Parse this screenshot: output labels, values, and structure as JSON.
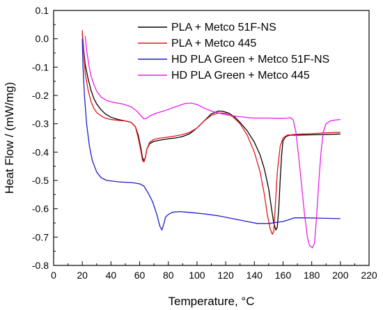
{
  "chart_data": {
    "type": "line",
    "title": "",
    "xlabel": "Temperature, °C",
    "ylabel": "Heat Flow / (mW/mg)",
    "xlim": [
      0,
      220
    ],
    "ylim": [
      -0.8,
      0.1
    ],
    "xticks": [
      0,
      20,
      40,
      60,
      80,
      100,
      120,
      140,
      160,
      180,
      200,
      220
    ],
    "yticks": [
      -0.8,
      -0.7,
      -0.6,
      -0.5,
      -0.4,
      -0.3,
      -0.2,
      -0.1,
      0.0,
      0.1
    ],
    "grid": false,
    "legend_position": "top-right",
    "series": [
      {
        "name": "PLA + Metco 51F-NS",
        "color": "#000000",
        "points": [
          [
            20,
            0.02
          ],
          [
            21,
            -0.04
          ],
          [
            22,
            -0.09
          ],
          [
            24,
            -0.14
          ],
          [
            26,
            -0.18
          ],
          [
            28,
            -0.21
          ],
          [
            30,
            -0.23
          ],
          [
            33,
            -0.25
          ],
          [
            36,
            -0.265
          ],
          [
            40,
            -0.277
          ],
          [
            45,
            -0.285
          ],
          [
            50,
            -0.29
          ],
          [
            54,
            -0.295
          ],
          [
            57,
            -0.31
          ],
          [
            59,
            -0.34
          ],
          [
            61,
            -0.39
          ],
          [
            62,
            -0.42
          ],
          [
            63,
            -0.43
          ],
          [
            64,
            -0.42
          ],
          [
            65,
            -0.39
          ],
          [
            67,
            -0.37
          ],
          [
            70,
            -0.362
          ],
          [
            75,
            -0.357
          ],
          [
            80,
            -0.353
          ],
          [
            85,
            -0.35
          ],
          [
            90,
            -0.345
          ],
          [
            95,
            -0.335
          ],
          [
            100,
            -0.315
          ],
          [
            105,
            -0.29
          ],
          [
            110,
            -0.265
          ],
          [
            115,
            -0.255
          ],
          [
            118,
            -0.256
          ],
          [
            122,
            -0.262
          ],
          [
            126,
            -0.275
          ],
          [
            130,
            -0.295
          ],
          [
            135,
            -0.325
          ],
          [
            140,
            -0.365
          ],
          [
            144,
            -0.41
          ],
          [
            147,
            -0.46
          ],
          [
            150,
            -0.53
          ],
          [
            152,
            -0.6
          ],
          [
            153.5,
            -0.65
          ],
          [
            155,
            -0.675
          ],
          [
            156,
            -0.665
          ],
          [
            157,
            -0.6
          ],
          [
            158,
            -0.5
          ],
          [
            159,
            -0.41
          ],
          [
            160,
            -0.36
          ],
          [
            162,
            -0.345
          ],
          [
            165,
            -0.34
          ],
          [
            170,
            -0.34
          ],
          [
            180,
            -0.339
          ],
          [
            190,
            -0.338
          ],
          [
            200,
            -0.336
          ]
        ]
      },
      {
        "name": "PLA + Metco 445",
        "color": "#e0161c",
        "points": [
          [
            20,
            0.03
          ],
          [
            21,
            -0.05
          ],
          [
            22,
            -0.12
          ],
          [
            24,
            -0.18
          ],
          [
            26,
            -0.22
          ],
          [
            28,
            -0.245
          ],
          [
            30,
            -0.26
          ],
          [
            33,
            -0.272
          ],
          [
            36,
            -0.28
          ],
          [
            40,
            -0.285
          ],
          [
            45,
            -0.288
          ],
          [
            50,
            -0.29
          ],
          [
            54,
            -0.295
          ],
          [
            57,
            -0.31
          ],
          [
            59,
            -0.35
          ],
          [
            61,
            -0.4
          ],
          [
            62,
            -0.43
          ],
          [
            63,
            -0.435
          ],
          [
            64,
            -0.42
          ],
          [
            65,
            -0.39
          ],
          [
            67,
            -0.365
          ],
          [
            70,
            -0.355
          ],
          [
            75,
            -0.35
          ],
          [
            80,
            -0.347
          ],
          [
            85,
            -0.343
          ],
          [
            90,
            -0.338
          ],
          [
            95,
            -0.33
          ],
          [
            100,
            -0.315
          ],
          [
            105,
            -0.29
          ],
          [
            110,
            -0.27
          ],
          [
            115,
            -0.262
          ],
          [
            120,
            -0.263
          ],
          [
            125,
            -0.275
          ],
          [
            130,
            -0.3
          ],
          [
            135,
            -0.34
          ],
          [
            140,
            -0.4
          ],
          [
            144,
            -0.47
          ],
          [
            147,
            -0.55
          ],
          [
            149,
            -0.62
          ],
          [
            151,
            -0.67
          ],
          [
            152.5,
            -0.69
          ],
          [
            153.5,
            -0.68
          ],
          [
            154.5,
            -0.6
          ],
          [
            156,
            -0.47
          ],
          [
            158,
            -0.38
          ],
          [
            160,
            -0.35
          ],
          [
            163,
            -0.34
          ],
          [
            170,
            -0.337
          ],
          [
            180,
            -0.335
          ],
          [
            190,
            -0.332
          ],
          [
            200,
            -0.33
          ]
        ]
      },
      {
        "name": "HD PLA Green + Metco 51F-NS",
        "color": "#1c1ccc",
        "points": [
          [
            20,
            0.0
          ],
          [
            20.5,
            -0.1
          ],
          [
            21.5,
            -0.2
          ],
          [
            23,
            -0.3
          ],
          [
            25,
            -0.38
          ],
          [
            27,
            -0.43
          ],
          [
            30,
            -0.47
          ],
          [
            33,
            -0.49
          ],
          [
            37,
            -0.5
          ],
          [
            45,
            -0.505
          ],
          [
            55,
            -0.508
          ],
          [
            60,
            -0.512
          ],
          [
            63,
            -0.52
          ],
          [
            66,
            -0.545
          ],
          [
            69,
            -0.575
          ],
          [
            72,
            -0.62
          ],
          [
            74,
            -0.66
          ],
          [
            75.5,
            -0.675
          ],
          [
            76.5,
            -0.66
          ],
          [
            78,
            -0.63
          ],
          [
            80,
            -0.62
          ],
          [
            83,
            -0.612
          ],
          [
            88,
            -0.61
          ],
          [
            95,
            -0.613
          ],
          [
            105,
            -0.618
          ],
          [
            115,
            -0.625
          ],
          [
            125,
            -0.635
          ],
          [
            135,
            -0.645
          ],
          [
            142,
            -0.652
          ],
          [
            150,
            -0.652
          ],
          [
            160,
            -0.645
          ],
          [
            165,
            -0.637
          ],
          [
            168,
            -0.632
          ],
          [
            175,
            -0.632
          ],
          [
            185,
            -0.633
          ],
          [
            200,
            -0.635
          ]
        ]
      },
      {
        "name": "HD PLA Green + Metco 445",
        "color": "#e81ee8",
        "points": [
          [
            22,
            0.01
          ],
          [
            23,
            -0.04
          ],
          [
            24.5,
            -0.09
          ],
          [
            26,
            -0.13
          ],
          [
            28,
            -0.16
          ],
          [
            30,
            -0.185
          ],
          [
            33,
            -0.205
          ],
          [
            37,
            -0.218
          ],
          [
            42,
            -0.225
          ],
          [
            48,
            -0.23
          ],
          [
            54,
            -0.24
          ],
          [
            58,
            -0.255
          ],
          [
            61,
            -0.272
          ],
          [
            63,
            -0.283
          ],
          [
            65,
            -0.28
          ],
          [
            68,
            -0.27
          ],
          [
            72,
            -0.262
          ],
          [
            78,
            -0.253
          ],
          [
            85,
            -0.24
          ],
          [
            92,
            -0.228
          ],
          [
            96,
            -0.227
          ],
          [
            100,
            -0.232
          ],
          [
            105,
            -0.245
          ],
          [
            110,
            -0.255
          ],
          [
            115,
            -0.262
          ],
          [
            120,
            -0.268
          ],
          [
            125,
            -0.272
          ],
          [
            130,
            -0.275
          ],
          [
            135,
            -0.278
          ],
          [
            140,
            -0.28
          ],
          [
            150,
            -0.28
          ],
          [
            158,
            -0.281
          ],
          [
            163,
            -0.28
          ],
          [
            165,
            -0.278
          ],
          [
            167,
            -0.285
          ],
          [
            169,
            -0.33
          ],
          [
            171,
            -0.42
          ],
          [
            173,
            -0.52
          ],
          [
            175,
            -0.62
          ],
          [
            177,
            -0.7
          ],
          [
            178.5,
            -0.73
          ],
          [
            180.5,
            -0.738
          ],
          [
            182,
            -0.72
          ],
          [
            183.5,
            -0.62
          ],
          [
            185,
            -0.5
          ],
          [
            186.5,
            -0.4
          ],
          [
            188,
            -0.33
          ],
          [
            190,
            -0.3
          ],
          [
            193,
            -0.29
          ],
          [
            196,
            -0.287
          ],
          [
            200,
            -0.285
          ]
        ]
      }
    ]
  }
}
